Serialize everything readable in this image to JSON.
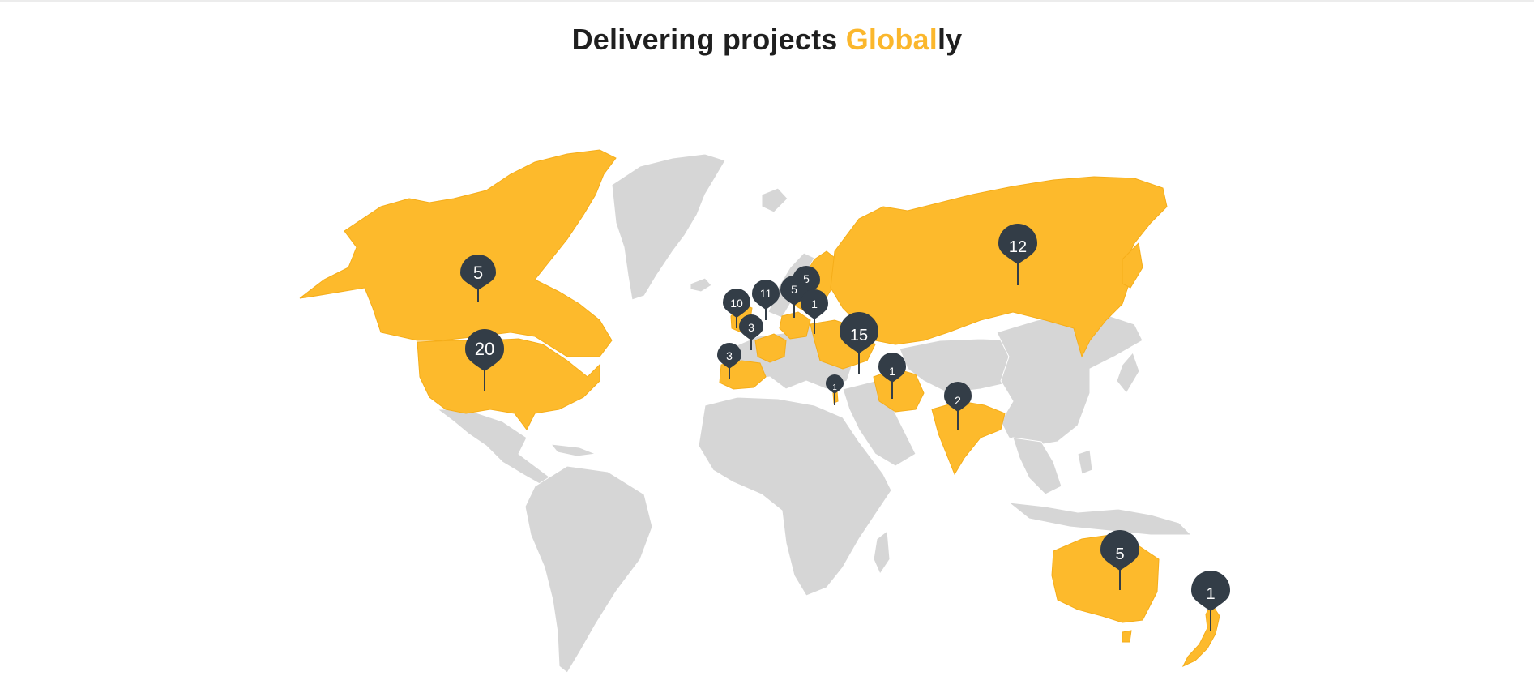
{
  "heading": {
    "prefix": "Delivering projects ",
    "highlight": "Global",
    "suffix": "ly"
  },
  "colors": {
    "highlighted_country": "#fdba2c",
    "other_country": "#d6d6d6",
    "pin": "#333d47",
    "accent_text": "#fbb72c"
  },
  "markers": [
    {
      "region": "Canada",
      "count": "5"
    },
    {
      "region": "United States",
      "count": "20"
    },
    {
      "region": "United Kingdom",
      "count": "10"
    },
    {
      "region": "Denmark",
      "count": "11"
    },
    {
      "region": "France",
      "count": "3"
    },
    {
      "region": "Portugal",
      "count": "3"
    },
    {
      "region": "Sweden",
      "count": "5"
    },
    {
      "region": "Finland",
      "count": "5"
    },
    {
      "region": "Baltic States",
      "count": "1"
    },
    {
      "region": "Ukraine",
      "count": "15"
    },
    {
      "region": "Russia",
      "count": "12"
    },
    {
      "region": "Iran",
      "count": "1"
    },
    {
      "region": "Israel",
      "count": "1"
    },
    {
      "region": "India",
      "count": "2"
    },
    {
      "region": "Australia",
      "count": "5"
    },
    {
      "region": "New Zealand",
      "count": "1"
    }
  ]
}
